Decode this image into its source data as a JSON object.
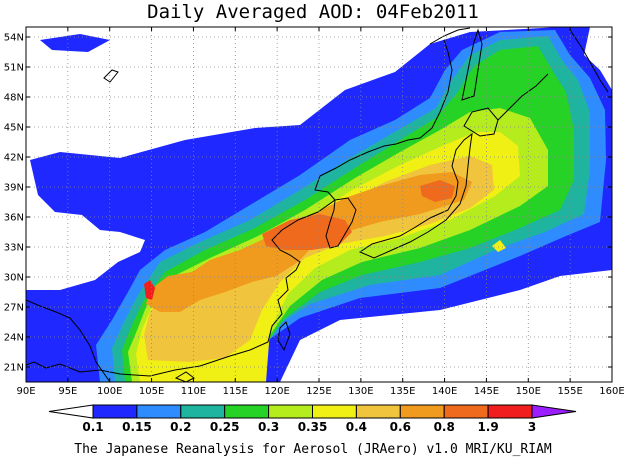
{
  "title": "Daily Averaged AOD: 04Feb2011",
  "footer": "The Japanese Reanalysis for Aerosol (JRAero) v1.0 MRI/KU_RIAM",
  "map": {
    "lon_range": [
      90,
      160
    ],
    "lat_range": [
      19.5,
      55
    ],
    "lon_ticks": [
      90,
      95,
      100,
      105,
      110,
      115,
      120,
      125,
      130,
      135,
      140,
      145,
      150,
      155,
      160
    ],
    "lon_labels": [
      "90E",
      "95E",
      "100E",
      "105E",
      "110E",
      "115E",
      "120E",
      "125E",
      "130E",
      "135E",
      "140E",
      "145E",
      "150E",
      "155E",
      "160E"
    ],
    "lat_ticks": [
      21,
      24,
      27,
      30,
      33,
      36,
      39,
      42,
      45,
      48,
      51,
      54
    ],
    "lat_labels": [
      "21N",
      "24N",
      "27N",
      "30N",
      "33N",
      "36N",
      "39N",
      "42N",
      "45N",
      "48N",
      "51N",
      "54N"
    ],
    "grid": true
  },
  "colorbar": {
    "levels": [
      "0.1",
      "0.15",
      "0.2",
      "0.25",
      "0.3",
      "0.35",
      "0.4",
      "0.6",
      "0.8",
      "1.9",
      "3"
    ],
    "colors": [
      "#ffffff",
      "#1e28ff",
      "#2f8cff",
      "#1fb4a0",
      "#26d226",
      "#b4ec1e",
      "#f0f014",
      "#f0c43c",
      "#f09a1e",
      "#f06a1e",
      "#f01e1e",
      "#9a1eff"
    ]
  }
}
